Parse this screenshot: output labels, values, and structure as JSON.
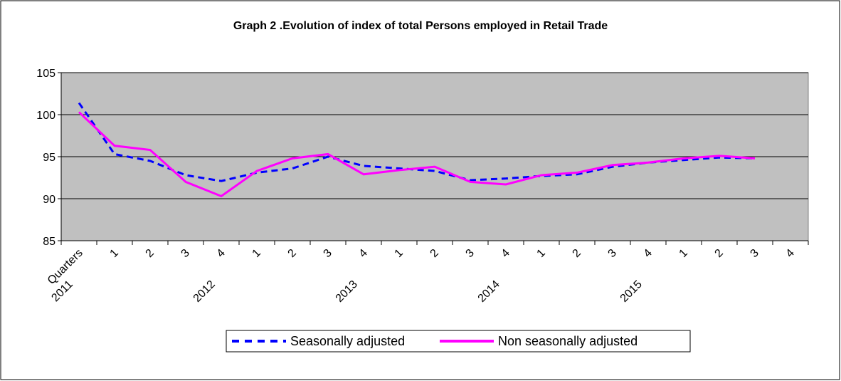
{
  "chart_data": {
    "type": "line",
    "title": "Graph 2 .Evolution of index of total Persons employed in Retail Trade",
    "categories": [
      "Quarters",
      "1",
      "2",
      "3",
      "4",
      "1",
      "2",
      "3",
      "4",
      "1",
      "2",
      "3",
      "4",
      "1",
      "2",
      "3",
      "4",
      "1",
      "2",
      "3",
      "4"
    ],
    "years": [
      "2011",
      null,
      null,
      null,
      "2012",
      null,
      null,
      null,
      "2013",
      null,
      null,
      null,
      "2014",
      null,
      null,
      null,
      "2015",
      null,
      null,
      null,
      null
    ],
    "series": [
      {
        "name": "Seasonally adjusted",
        "color": "#0000ff",
        "dashed": true,
        "values": [
          101.4,
          95.3,
          94.5,
          92.8,
          92.1,
          93.1,
          93.6,
          95.0,
          93.9,
          93.6,
          93.3,
          92.2,
          92.4,
          92.7,
          92.9,
          93.8,
          94.3,
          94.6,
          94.9,
          94.8,
          null
        ]
      },
      {
        "name": "Non seasonally adjusted",
        "color": "#ff00ff",
        "dashed": false,
        "values": [
          100.3,
          96.3,
          95.8,
          92.0,
          90.3,
          93.3,
          94.8,
          95.3,
          92.9,
          93.4,
          93.8,
          92.0,
          91.7,
          92.8,
          93.1,
          94.0,
          94.3,
          94.8,
          95.1,
          94.8,
          null
        ]
      }
    ],
    "ylim": [
      85,
      105
    ],
    "yticks": [
      85,
      90,
      95,
      100,
      105
    ],
    "grid": true,
    "legend": "bottom"
  }
}
